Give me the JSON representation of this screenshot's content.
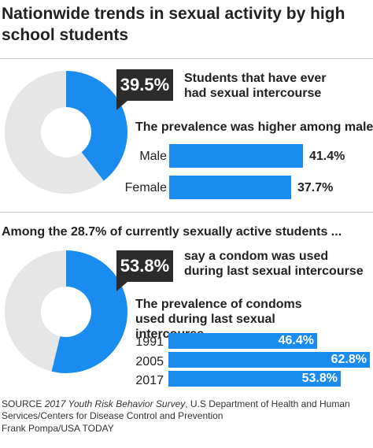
{
  "title": "Nationwide trends in sexual activity by high school students",
  "section1": {
    "donut_value": "39.5%",
    "donut_description": "Students that have ever had sexual intercourse",
    "subhead": "The prevalence was higher among males",
    "bars": [
      {
        "label": "Male",
        "value_text": "41.4%",
        "value": 41.4
      },
      {
        "label": "Female",
        "value_text": "37.7%",
        "value": 37.7
      }
    ]
  },
  "section2": {
    "heading": "Among the 28.7% of currently sexually active students ...",
    "donut_value": "53.8%",
    "donut_description": "say a condom was used during last sexual intercourse",
    "subhead": "The prevalence of condoms used during last sexual intercourse",
    "bars": [
      {
        "label": "1991",
        "value_text": "46.4%",
        "value": 46.4
      },
      {
        "label": "2005",
        "value_text": "62.8%",
        "value": 62.8
      },
      {
        "label": "2017",
        "value_text": "53.8%",
        "value": 53.8
      }
    ]
  },
  "source_prefix": "SOURCE ",
  "source_italic": "2017 Youth Risk Behavior Survey",
  "source_rest": ", U.S Department of Health and Human Services/Centers for Disease Control and Prevention",
  "credit": "Frank Pompa/USA TODAY",
  "colors": {
    "accent": "#1a8cf0",
    "track": "#e6e6e6",
    "callout": "#2b2b2b"
  },
  "chart_data": [
    {
      "type": "pie",
      "values": [
        39.5,
        60.5
      ],
      "labels": [
        "Students that have ever had sexual intercourse",
        ""
      ]
    },
    {
      "type": "bar",
      "title": "The prevalence was higher among males",
      "categories": [
        "Male",
        "Female"
      ],
      "values": [
        41.4,
        37.7
      ]
    },
    {
      "type": "pie",
      "values": [
        53.8,
        46.2
      ],
      "labels": [
        "say a condom was used during last sexual intercourse",
        ""
      ]
    },
    {
      "type": "bar",
      "title": "The prevalence of condoms used during last sexual intercourse",
      "categories": [
        "1991",
        "2005",
        "2017"
      ],
      "values": [
        46.4,
        62.8,
        53.8
      ]
    }
  ]
}
